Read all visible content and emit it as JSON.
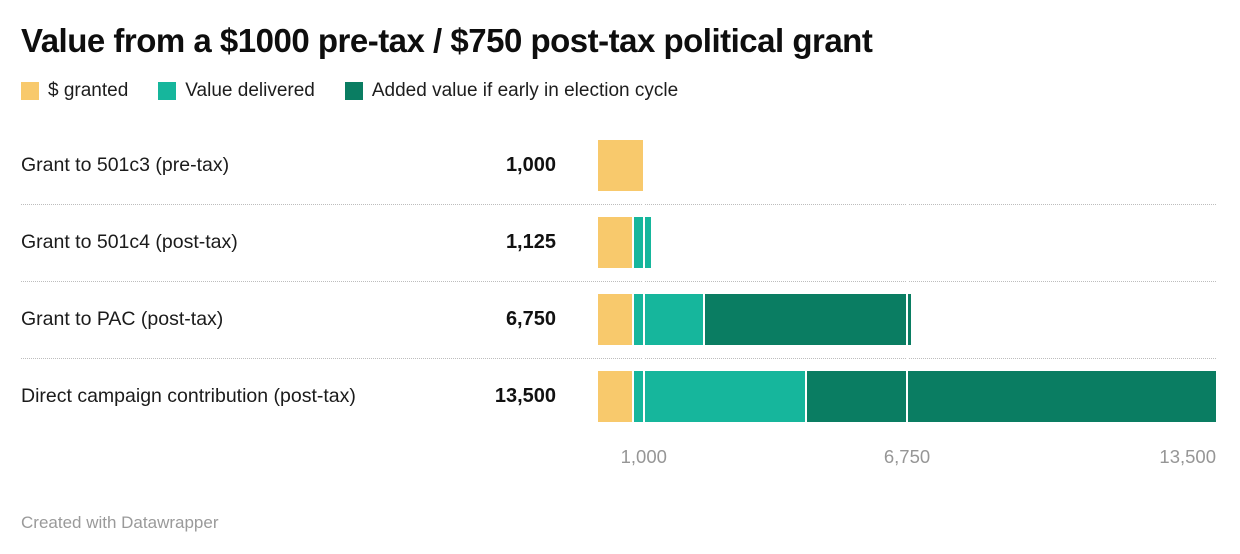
{
  "title": "Value from a $1000 pre-tax / $750 post-tax political grant",
  "legend": [
    {
      "label": "$ granted",
      "color": "#F8C96C"
    },
    {
      "label": "Value delivered",
      "color": "#16B69C"
    },
    {
      "label": "Added value if early in election cycle",
      "color": "#0A7D62"
    }
  ],
  "footer": "Created with Datawrapper",
  "chart_data": {
    "type": "bar",
    "orientation": "horizontal",
    "stacked": true,
    "title": "Value from a $1000 pre-tax / $750 post-tax political grant",
    "categories": [
      "Grant to 501c3 (pre-tax)",
      "Grant to 501c4 (post-tax)",
      "Grant to PAC (post-tax)",
      "Direct campaign contribution (post-tax)"
    ],
    "value_labels": [
      "1,000",
      "1,125",
      "6,750",
      "13,500"
    ],
    "totals": [
      1000,
      1125,
      6750,
      13500
    ],
    "series": [
      {
        "name": "$ granted",
        "color": "#F8C96C",
        "values": [
          1000,
          750,
          750,
          750
        ]
      },
      {
        "name": "Value delivered",
        "color": "#16B69C",
        "values": [
          0,
          375,
          1500,
          3750
        ]
      },
      {
        "name": "Added value if early in election cycle",
        "color": "#0A7D62",
        "values": [
          0,
          0,
          4500,
          9000
        ]
      }
    ],
    "xlim": [
      0,
      13500
    ],
    "ticks": [
      {
        "value": 1000,
        "label": "1,000"
      },
      {
        "value": 6750,
        "label": "6,750"
      },
      {
        "value": 13500,
        "label": "13,500"
      }
    ],
    "gridlines_over_bars": [
      1000,
      6750
    ],
    "grid": false,
    "legend_position": "top"
  }
}
